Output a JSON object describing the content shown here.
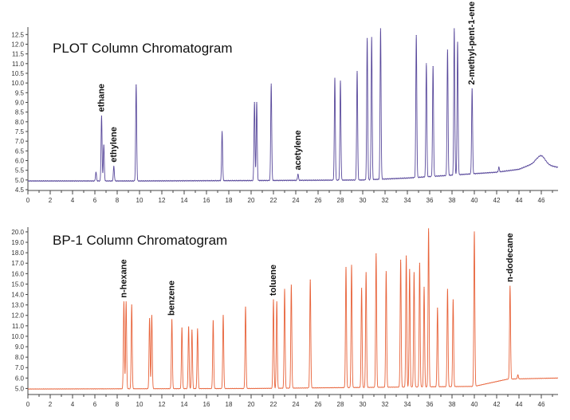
{
  "chart_data": [
    {
      "type": "line",
      "title": "PLOT Column Chromatogram",
      "xlabel": "",
      "ylabel": "",
      "xlim": [
        0,
        47.5
      ],
      "ylim": [
        4.5,
        12.8
      ],
      "xticks": [
        "0",
        "2",
        "4",
        "6",
        "8",
        "10",
        "12",
        "14",
        "16",
        "18",
        "20",
        "22",
        "24",
        "26",
        "28",
        "30",
        "32",
        "34",
        "36",
        "38",
        "40",
        "42",
        "44",
        "46"
      ],
      "yticks": [
        "4.5",
        "5.0",
        "5.5",
        "6.0",
        "6.5",
        "7.0",
        "7.5",
        "8.0",
        "8.5",
        "9.0",
        "9.5",
        "10.0",
        "10.5",
        "11.0",
        "11.5",
        "12.0",
        "12.5"
      ],
      "series_color": "#5a4a9c",
      "baseline": [
        [
          0,
          4.95
        ],
        [
          10,
          4.95
        ],
        [
          20,
          4.97
        ],
        [
          30,
          5.0
        ],
        [
          34,
          5.1
        ],
        [
          38,
          5.25
        ],
        [
          42,
          5.4
        ],
        [
          44,
          5.55
        ],
        [
          45.5,
          5.9
        ],
        [
          47.5,
          5.65
        ]
      ],
      "peaks": [
        [
          6.1,
          5.4
        ],
        [
          6.6,
          8.3
        ],
        [
          6.8,
          6.8
        ],
        [
          7.7,
          5.7
        ],
        [
          9.7,
          9.9
        ],
        [
          17.4,
          7.5
        ],
        [
          20.3,
          9.0
        ],
        [
          20.5,
          9.0
        ],
        [
          21.8,
          9.95
        ],
        [
          24.2,
          5.3
        ],
        [
          27.5,
          10.25
        ],
        [
          28.0,
          10.1
        ],
        [
          29.5,
          10.6
        ],
        [
          30.4,
          12.3
        ],
        [
          30.8,
          12.35
        ],
        [
          31.6,
          12.8
        ],
        [
          34.8,
          12.45
        ],
        [
          35.7,
          11.0
        ],
        [
          36.3,
          10.85
        ],
        [
          37.6,
          11.7
        ],
        [
          38.2,
          12.8
        ],
        [
          38.5,
          12.1
        ],
        [
          39.8,
          9.7
        ],
        [
          42.2,
          5.65
        ],
        [
          46.0,
          6.25
        ]
      ],
      "annotations": [
        {
          "text": "ethane",
          "x": 6.6
        },
        {
          "text": "ethylene",
          "x": 7.7
        },
        {
          "text": "acetylene",
          "x": 24.2
        },
        {
          "text": "2-methyl-pent-1-ene",
          "x": 39.8
        }
      ]
    },
    {
      "type": "line",
      "title": "BP-1 Column Chromatogram",
      "xlabel": "",
      "ylabel": "",
      "xlim": [
        0,
        47.5
      ],
      "ylim": [
        4.5,
        20.3
      ],
      "xticks": [
        "0",
        "2",
        "4",
        "6",
        "8",
        "10",
        "12",
        "14",
        "16",
        "18",
        "20",
        "22",
        "24",
        "26",
        "28",
        "30",
        "32",
        "34",
        "36",
        "38",
        "40",
        "42",
        "44",
        "46"
      ],
      "yticks": [
        "5.0",
        "6.0",
        "7.0",
        "8.0",
        "9.0",
        "10.0",
        "11.0",
        "12.0",
        "13.0",
        "14.0",
        "15.0",
        "16.0",
        "17.0",
        "18.0",
        "19.0",
        "20.0"
      ],
      "series_color": "#e8633a",
      "baseline": [
        [
          0,
          4.95
        ],
        [
          20,
          5.0
        ],
        [
          30,
          5.1
        ],
        [
          40,
          5.2
        ],
        [
          43,
          5.9
        ],
        [
          47.5,
          6.0
        ]
      ],
      "peaks": [
        [
          8.6,
          13.3
        ],
        [
          8.8,
          13.3
        ],
        [
          9.3,
          13.0
        ],
        [
          10.9,
          11.7
        ],
        [
          11.1,
          12.0
        ],
        [
          12.9,
          11.6
        ],
        [
          13.8,
          10.8
        ],
        [
          14.4,
          10.9
        ],
        [
          14.7,
          10.6
        ],
        [
          15.2,
          10.7
        ],
        [
          16.6,
          11.5
        ],
        [
          17.5,
          12.0
        ],
        [
          19.5,
          12.8
        ],
        [
          22.0,
          13.5
        ],
        [
          22.3,
          13.3
        ],
        [
          23.0,
          14.5
        ],
        [
          23.6,
          14.9
        ],
        [
          25.3,
          15.4
        ],
        [
          28.5,
          16.6
        ],
        [
          29.0,
          16.8
        ],
        [
          29.9,
          14.6
        ],
        [
          30.3,
          16.1
        ],
        [
          31.2,
          17.9
        ],
        [
          32.1,
          16.2
        ],
        [
          33.4,
          17.3
        ],
        [
          33.9,
          17.7
        ],
        [
          34.2,
          16.4
        ],
        [
          34.6,
          16.1
        ],
        [
          35.1,
          17.0
        ],
        [
          35.5,
          14.7
        ],
        [
          35.9,
          20.3
        ],
        [
          36.7,
          12.7
        ],
        [
          37.6,
          14.5
        ],
        [
          38.1,
          13.5
        ],
        [
          40.0,
          20.0
        ],
        [
          43.2,
          14.8
        ],
        [
          43.9,
          6.3
        ]
      ],
      "annotations": [
        {
          "text": "n-hexane",
          "x": 8.6
        },
        {
          "text": "benzene",
          "x": 12.9
        },
        {
          "text": "toluene",
          "x": 22.0
        },
        {
          "text": "n-dodecane",
          "x": 43.2
        }
      ]
    }
  ]
}
